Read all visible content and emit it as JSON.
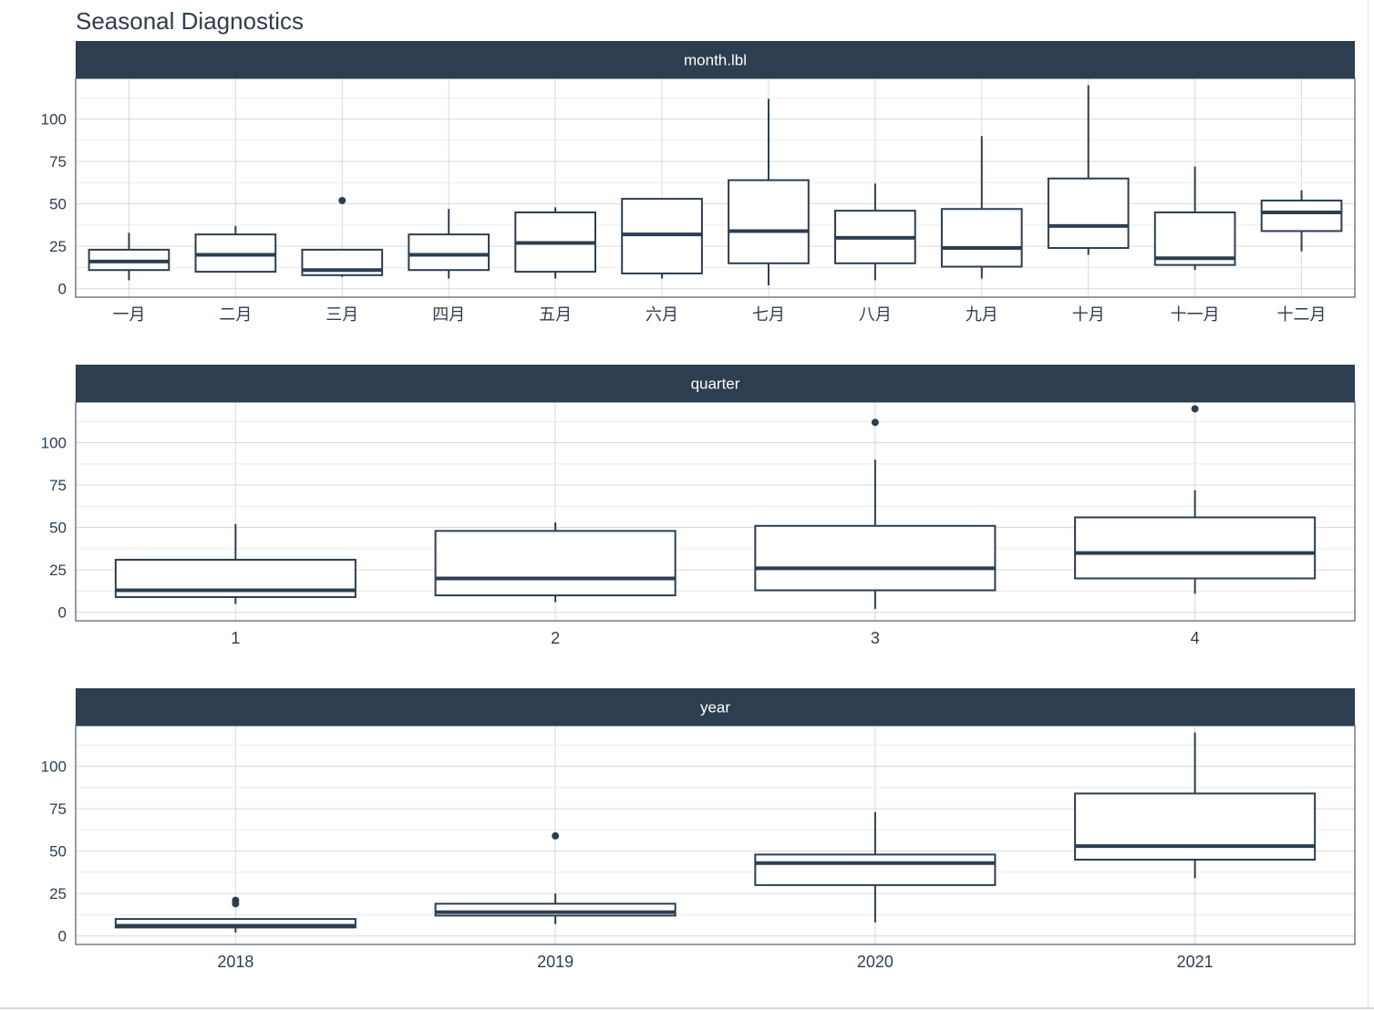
{
  "chart_data": {
    "type": "boxplot",
    "title": "Seasonal Diagnostics",
    "colors": {
      "strip_bg": "#2c3e50",
      "strip_text": "#ffffff",
      "box": "#2c3e50",
      "grid": "#d9d9d9",
      "axis_text": "#2c3e50"
    },
    "y_ticks": [
      0,
      25,
      50,
      75,
      100
    ],
    "ylim": [
      -5,
      124
    ],
    "grid": true,
    "facets": [
      {
        "strip": "month.lbl",
        "categories": [
          "一月",
          "二月",
          "三月",
          "四月",
          "五月",
          "六月",
          "七月",
          "八月",
          "九月",
          "十月",
          "十一月",
          "十二月"
        ],
        "boxes": [
          {
            "lw": 5,
            "q1": 11,
            "med": 16,
            "q3": 23,
            "uw": 33,
            "out": []
          },
          {
            "lw": 10,
            "q1": 10,
            "med": 20,
            "q3": 32,
            "uw": 37,
            "out": []
          },
          {
            "lw": 7,
            "q1": 8,
            "med": 11,
            "q3": 23,
            "uw": 23,
            "out": [
              52
            ]
          },
          {
            "lw": 6,
            "q1": 11,
            "med": 20,
            "q3": 32,
            "uw": 47,
            "out": []
          },
          {
            "lw": 6,
            "q1": 10,
            "med": 27,
            "q3": 45,
            "uw": 48,
            "out": []
          },
          {
            "lw": 6,
            "q1": 9,
            "med": 32,
            "q3": 53,
            "uw": 53,
            "out": []
          },
          {
            "lw": 2,
            "q1": 15,
            "med": 34,
            "q3": 64,
            "uw": 112,
            "out": []
          },
          {
            "lw": 5,
            "q1": 15,
            "med": 30,
            "q3": 46,
            "uw": 62,
            "out": []
          },
          {
            "lw": 6,
            "q1": 13,
            "med": 24,
            "q3": 47,
            "uw": 90,
            "out": []
          },
          {
            "lw": 20,
            "q1": 24,
            "med": 37,
            "q3": 65,
            "uw": 120,
            "out": []
          },
          {
            "lw": 11,
            "q1": 14,
            "med": 18,
            "q3": 45,
            "uw": 72,
            "out": []
          },
          {
            "lw": 22,
            "q1": 34,
            "med": 45,
            "q3": 52,
            "uw": 58,
            "out": []
          }
        ]
      },
      {
        "strip": "quarter",
        "categories": [
          "1",
          "2",
          "3",
          "4"
        ],
        "boxes": [
          {
            "lw": 5,
            "q1": 9,
            "med": 13,
            "q3": 31,
            "uw": 52,
            "out": []
          },
          {
            "lw": 6,
            "q1": 10,
            "med": 20,
            "q3": 48,
            "uw": 53,
            "out": []
          },
          {
            "lw": 2,
            "q1": 13,
            "med": 26,
            "q3": 51,
            "uw": 90,
            "out": [
              112
            ]
          },
          {
            "lw": 11,
            "q1": 20,
            "med": 35,
            "q3": 56,
            "uw": 72,
            "out": [
              120
            ]
          }
        ]
      },
      {
        "strip": "year",
        "categories": [
          "2018",
          "2019",
          "2020",
          "2021"
        ],
        "boxes": [
          {
            "lw": 2,
            "q1": 5,
            "med": 6,
            "q3": 10,
            "uw": 10,
            "out": [
              19,
              21
            ]
          },
          {
            "lw": 7,
            "q1": 12,
            "med": 14,
            "q3": 19,
            "uw": 25,
            "out": [
              59
            ]
          },
          {
            "lw": 8,
            "q1": 30,
            "med": 43,
            "q3": 48,
            "uw": 73,
            "out": []
          },
          {
            "lw": 34,
            "q1": 45,
            "med": 53,
            "q3": 84,
            "uw": 120,
            "out": []
          }
        ]
      }
    ]
  }
}
